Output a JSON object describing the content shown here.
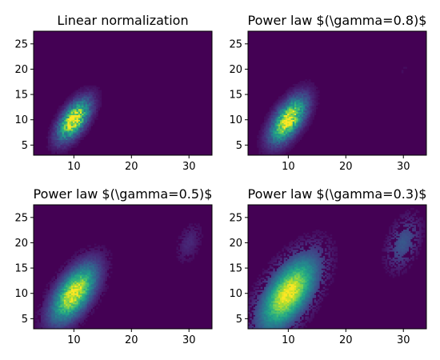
{
  "chart_data": [
    {
      "type": "heatmap",
      "title": "Linear normalization",
      "gamma": 1.0,
      "xlim": [
        3,
        34
      ],
      "ylim": [
        3,
        27.5
      ],
      "xticks": [
        "10",
        "20",
        "30"
      ],
      "yticks": [
        "5",
        "10",
        "15",
        "20",
        "25"
      ],
      "colormap": "viridis",
      "clusters": [
        {
          "center": [
            10,
            10
          ],
          "spread": [
            1.8,
            2.6
          ],
          "correlation": 0.6,
          "weight": 1.0
        },
        {
          "center": [
            30,
            20
          ],
          "spread": [
            1.0,
            1.8
          ],
          "correlation": 0.4,
          "weight": 0.012
        }
      ]
    },
    {
      "type": "heatmap",
      "title": "Power law $(\\gamma=0.8)$",
      "gamma": 0.8,
      "xlim": [
        3,
        34
      ],
      "ylim": [
        3,
        27.5
      ],
      "xticks": [
        "10",
        "20",
        "30"
      ],
      "yticks": [
        "5",
        "10",
        "15",
        "20",
        "25"
      ],
      "colormap": "viridis",
      "clusters": [
        {
          "center": [
            10,
            10
          ],
          "spread": [
            1.8,
            2.6
          ],
          "correlation": 0.6,
          "weight": 1.0
        },
        {
          "center": [
            30,
            20
          ],
          "spread": [
            1.0,
            1.8
          ],
          "correlation": 0.4,
          "weight": 0.012
        }
      ]
    },
    {
      "type": "heatmap",
      "title": "Power law $(\\gamma=0.5)$",
      "gamma": 0.5,
      "xlim": [
        3,
        34
      ],
      "ylim": [
        3,
        27.5
      ],
      "xticks": [
        "10",
        "20",
        "30"
      ],
      "yticks": [
        "5",
        "10",
        "15",
        "20",
        "25"
      ],
      "colormap": "viridis",
      "clusters": [
        {
          "center": [
            10,
            10
          ],
          "spread": [
            1.8,
            2.6
          ],
          "correlation": 0.6,
          "weight": 1.0
        },
        {
          "center": [
            30,
            20
          ],
          "spread": [
            1.0,
            1.8
          ],
          "correlation": 0.4,
          "weight": 0.012
        }
      ]
    },
    {
      "type": "heatmap",
      "title": "Power law $(\\gamma=0.3)$",
      "gamma": 0.3,
      "xlim": [
        3,
        34
      ],
      "ylim": [
        3,
        27.5
      ],
      "xticks": [
        "10",
        "20",
        "30"
      ],
      "yticks": [
        "5",
        "10",
        "15",
        "20",
        "25"
      ],
      "colormap": "viridis",
      "clusters": [
        {
          "center": [
            10,
            10
          ],
          "spread": [
            1.8,
            2.6
          ],
          "correlation": 0.6,
          "weight": 1.0
        },
        {
          "center": [
            30,
            20
          ],
          "spread": [
            1.0,
            1.8
          ],
          "correlation": 0.4,
          "weight": 0.012
        }
      ]
    }
  ]
}
